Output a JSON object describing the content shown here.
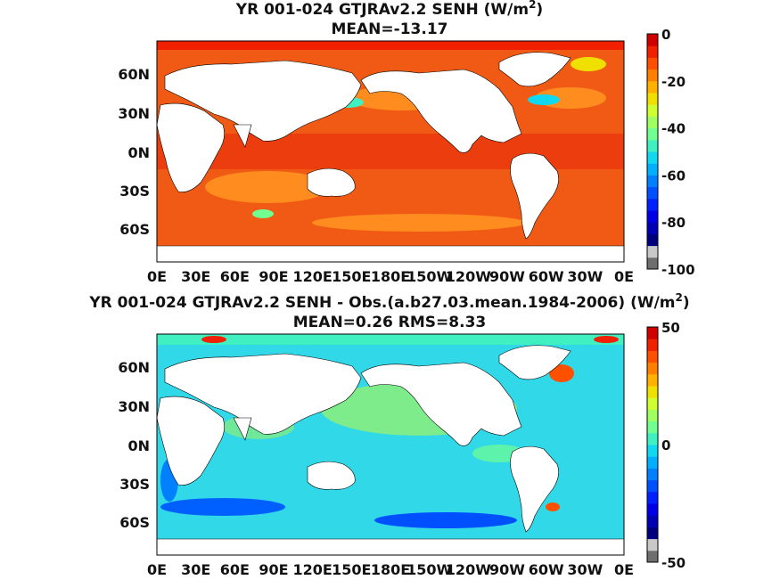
{
  "panels": [
    {
      "title_line1": "YR 001-024 GTJRAv2.2  SENH (W/m",
      "title_sup": "2",
      "title_close": ")",
      "title_line2": "MEAN=-13.17",
      "colorbar": {
        "ticks": [
          "0",
          "-20",
          "-40",
          "-60",
          "-80",
          "-100"
        ],
        "range": [
          -100,
          0
        ],
        "colors": [
          "#6e6e6e",
          "#c8c8c8",
          "#00007f",
          "#0000b4",
          "#0000e8",
          "#0020ff",
          "#0050ff",
          "#0080ff",
          "#00b0ff",
          "#10d8f0",
          "#40f0c0",
          "#70ff90",
          "#a0ff60",
          "#d0ff30",
          "#f0e000",
          "#ffb000",
          "#ff8000",
          "#ff5000",
          "#f02000",
          "#d00000"
        ]
      }
    },
    {
      "title_line1": "YR 001-024 GTJRAv2.2 SENH - Obs.(a.b27.03.mean.1984-2006) (W/m",
      "title_sup": "2",
      "title_close": ")",
      "title_line2": "MEAN=0.26 RMS=8.33",
      "colorbar": {
        "ticks": [
          "50",
          "0",
          "-50"
        ],
        "range": [
          -50,
          50
        ],
        "colors": [
          "#6e6e6e",
          "#c8c8c8",
          "#00007f",
          "#0000b4",
          "#0000e8",
          "#0020ff",
          "#0050ff",
          "#0080ff",
          "#00b0ff",
          "#10d8f0",
          "#40f0c0",
          "#70ff90",
          "#a0ff60",
          "#d0ff30",
          "#f0e000",
          "#ffb000",
          "#ff8000",
          "#ff5000",
          "#f02000",
          "#d00000"
        ]
      }
    }
  ],
  "lat_ticks": [
    "60N",
    "30N",
    "0N",
    "30S",
    "60S"
  ],
  "lon_ticks": [
    "0E",
    "30E",
    "60E",
    "90E",
    "120E",
    "150E",
    "180E",
    "150W",
    "120W",
    "90W",
    "60W",
    "30W",
    "0E"
  ],
  "colors": {
    "top_ocean": "#f05a14",
    "top_ocean_light": "#ff8c1e",
    "top_ocean_dark": "#e8300a",
    "bottom_ocean": "#30d8e8",
    "bottom_ocean_green": "#8cf07a",
    "bottom_ocean_blue": "#0060ff",
    "land": "#ffffff"
  }
}
